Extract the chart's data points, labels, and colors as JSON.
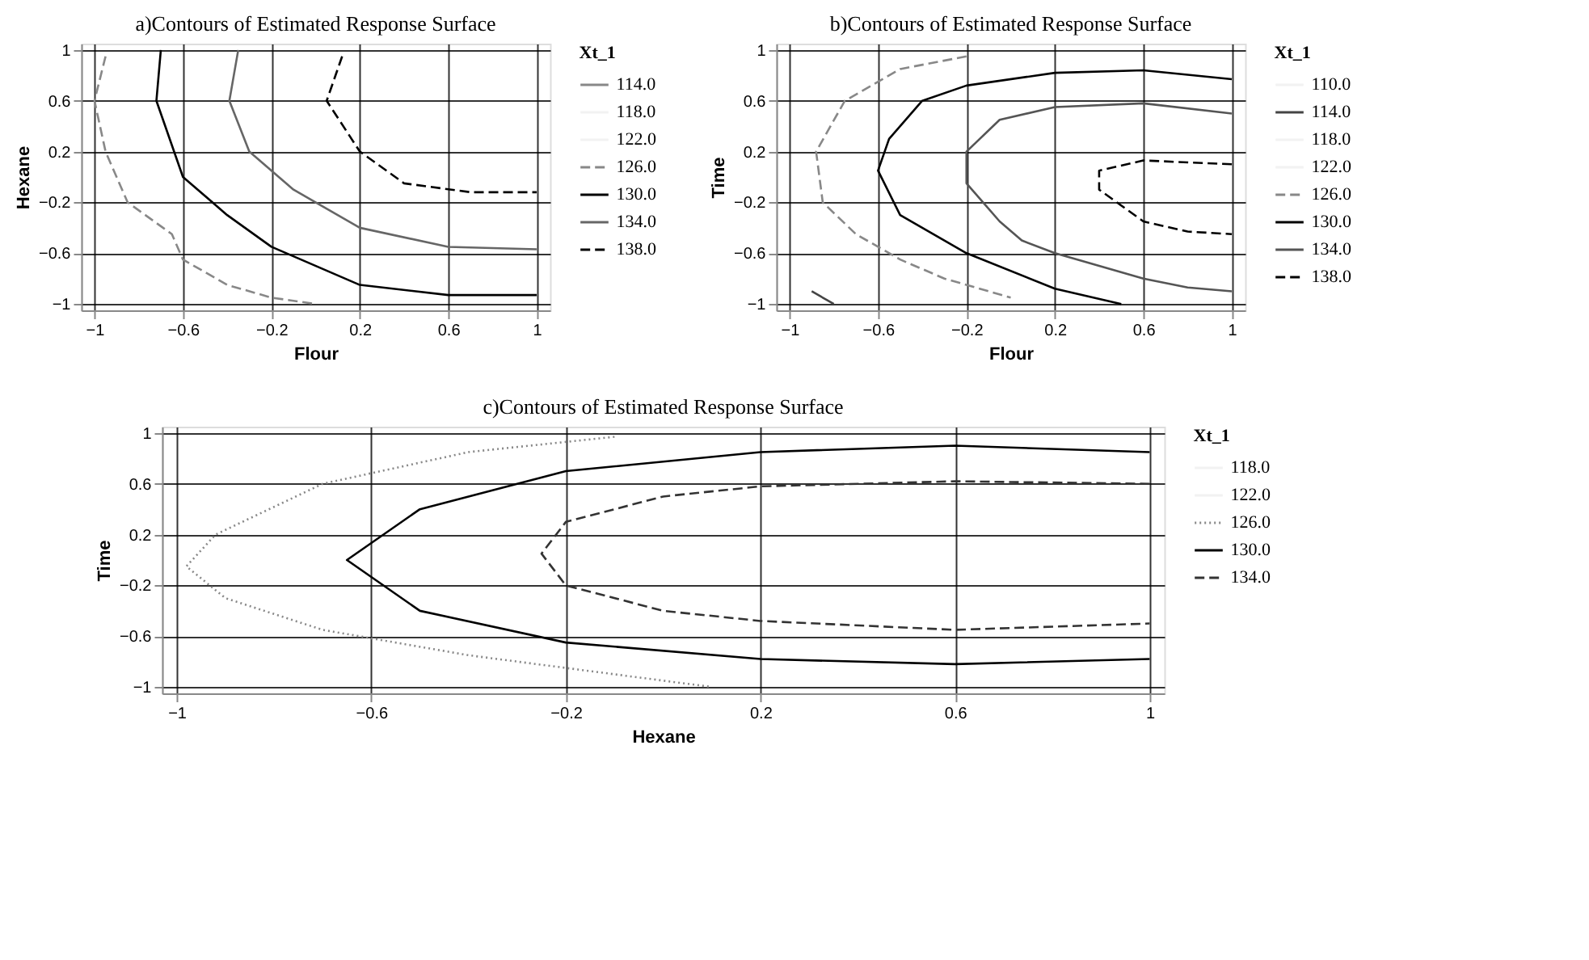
{
  "chart_data": [
    {
      "type": "line",
      "title": "a)Contours of Estimated Response Surface",
      "xlabel": "Flour",
      "ylabel": "Hexane",
      "legend_title": "Xt_1",
      "legend": "right",
      "grid": true,
      "xlim": [
        -1.06,
        1.06
      ],
      "ylim": [
        -1.05,
        1.05
      ],
      "xticks": [
        -1,
        -0.6,
        -0.2,
        0.2,
        0.6,
        1
      ],
      "yticks": [
        -1,
        -0.6,
        -0.2,
        0.2,
        0.6,
        1
      ],
      "series": [
        {
          "name": "114.0",
          "color": "#888888",
          "line_style": "solid"
        },
        {
          "name": "118.0",
          "color": "#f2f2f2",
          "line_style": "solid"
        },
        {
          "name": "122.0",
          "color": "#f2f2f2",
          "line_style": "solid"
        },
        {
          "name": "126.0",
          "color": "#888888",
          "line_style": "dashed",
          "x": [
            -0.95,
            -1.0,
            -0.95,
            -0.85,
            -0.65,
            -0.6,
            -0.4,
            -0.2,
            0.0
          ],
          "values": [
            0.95,
            0.6,
            0.2,
            -0.2,
            -0.45,
            -0.65,
            -0.85,
            -0.95,
            -1.0
          ]
        },
        {
          "name": "130.0",
          "color": "#000000",
          "line_style": "solid",
          "x": [
            -0.7,
            -0.72,
            -0.6,
            -0.4,
            -0.2,
            0.2,
            0.6,
            1.0
          ],
          "values": [
            1.0,
            0.6,
            0.0,
            -0.3,
            -0.55,
            -0.85,
            -0.93,
            -0.93
          ]
        },
        {
          "name": "134.0",
          "color": "#666666",
          "line_style": "solid",
          "x": [
            -0.35,
            -0.39,
            -0.3,
            -0.1,
            0.2,
            0.6,
            1.0
          ],
          "values": [
            1.0,
            0.6,
            0.2,
            -0.1,
            -0.4,
            -0.55,
            -0.57
          ]
        },
        {
          "name": "138.0",
          "color": "#000000",
          "line_style": "dashed",
          "x": [
            0.12,
            0.05,
            0.2,
            0.4,
            0.7,
            1.0
          ],
          "values": [
            0.95,
            0.6,
            0.2,
            -0.05,
            -0.12,
            -0.12
          ]
        }
      ]
    },
    {
      "type": "line",
      "title": "b)Contours of Estimated Response Surface",
      "xlabel": "Flour",
      "ylabel": "Time",
      "legend_title": "Xt_1",
      "legend": "right",
      "grid": true,
      "xlim": [
        -1.06,
        1.06
      ],
      "ylim": [
        -1.05,
        1.05
      ],
      "xticks": [
        -1,
        -0.6,
        -0.2,
        0.2,
        0.6,
        1
      ],
      "yticks": [
        -1,
        -0.6,
        -0.2,
        0.2,
        0.6,
        1
      ],
      "series": [
        {
          "name": "110.0",
          "color": "#f2f2f2",
          "line_style": "solid"
        },
        {
          "name": "114.0",
          "color": "#444444",
          "line_style": "solid",
          "x": [
            -0.9,
            -0.8
          ],
          "values": [
            -0.9,
            -1.0
          ]
        },
        {
          "name": "118.0",
          "color": "#f2f2f2",
          "line_style": "solid"
        },
        {
          "name": "122.0",
          "color": "#f2f2f2",
          "line_style": "solid"
        },
        {
          "name": "126.0",
          "color": "#888888",
          "line_style": "dashed",
          "x": [
            -0.2,
            -0.5,
            -0.75,
            -0.88,
            -0.85,
            -0.7,
            -0.5,
            -0.3,
            0.0
          ],
          "values": [
            0.95,
            0.85,
            0.6,
            0.2,
            -0.2,
            -0.45,
            -0.65,
            -0.8,
            -0.95
          ]
        },
        {
          "name": "130.0",
          "color": "#000000",
          "line_style": "solid",
          "x": [
            1.0,
            0.6,
            0.2,
            -0.2,
            -0.4,
            -0.55,
            -0.6,
            -0.5,
            -0.2,
            0.2,
            0.5
          ],
          "values": [
            0.77,
            0.84,
            0.82,
            0.72,
            0.6,
            0.3,
            0.05,
            -0.3,
            -0.6,
            -0.88,
            -1.0
          ]
        },
        {
          "name": "134.0",
          "color": "#555555",
          "line_style": "solid",
          "x": [
            1.0,
            0.6,
            0.2,
            -0.05,
            -0.2,
            -0.2,
            -0.05,
            0.05,
            0.2,
            0.6,
            0.8,
            1.0
          ],
          "values": [
            0.5,
            0.58,
            0.55,
            0.45,
            0.2,
            -0.05,
            -0.35,
            -0.5,
            -0.6,
            -0.8,
            -0.87,
            -0.9
          ]
        },
        {
          "name": "138.0",
          "color": "#000000",
          "line_style": "dashed",
          "x": [
            1.0,
            0.6,
            0.4,
            0.4,
            0.6,
            0.8,
            1.0
          ],
          "values": [
            0.1,
            0.13,
            0.05,
            -0.1,
            -0.35,
            -0.43,
            -0.45
          ]
        }
      ]
    },
    {
      "type": "line",
      "title": "c)Contours of Estimated Response Surface",
      "xlabel": "Hexane",
      "ylabel": "Time",
      "legend_title": "Xt_1",
      "legend": "right",
      "grid": true,
      "xlim": [
        -1.03,
        1.03
      ],
      "ylim": [
        -1.05,
        1.05
      ],
      "xticks": [
        -1,
        -0.6,
        -0.2,
        0.2,
        0.6,
        1
      ],
      "yticks": [
        -1,
        -0.6,
        -0.2,
        0.2,
        0.6,
        1
      ],
      "series": [
        {
          "name": "118.0",
          "color": "#f2f2f2",
          "line_style": "solid"
        },
        {
          "name": "122.0",
          "color": "#f2f2f2",
          "line_style": "solid"
        },
        {
          "name": "126.0",
          "color": "#888888",
          "line_style": "dotted",
          "x": [
            -0.1,
            -0.4,
            -0.7,
            -0.92,
            -0.98,
            -0.9,
            -0.7,
            -0.4,
            -0.1,
            0.1
          ],
          "values": [
            0.97,
            0.85,
            0.6,
            0.2,
            -0.05,
            -0.3,
            -0.55,
            -0.75,
            -0.9,
            -1.0
          ]
        },
        {
          "name": "130.0",
          "color": "#000000",
          "line_style": "solid",
          "x": [
            1.0,
            0.6,
            0.2,
            -0.2,
            -0.5,
            -0.65,
            -0.5,
            -0.2,
            0.2,
            0.6,
            1.0
          ],
          "values": [
            0.85,
            0.9,
            0.85,
            0.7,
            0.4,
            0.0,
            -0.4,
            -0.65,
            -0.78,
            -0.82,
            -0.78
          ]
        },
        {
          "name": "134.0",
          "color": "#333333",
          "line_style": "dashed",
          "x": [
            1.0,
            0.6,
            0.2,
            0.0,
            -0.2,
            -0.25,
            -0.2,
            0.0,
            0.2,
            0.6,
            1.0
          ],
          "values": [
            0.6,
            0.62,
            0.58,
            0.5,
            0.3,
            0.05,
            -0.2,
            -0.4,
            -0.48,
            -0.55,
            -0.5
          ]
        }
      ]
    }
  ]
}
